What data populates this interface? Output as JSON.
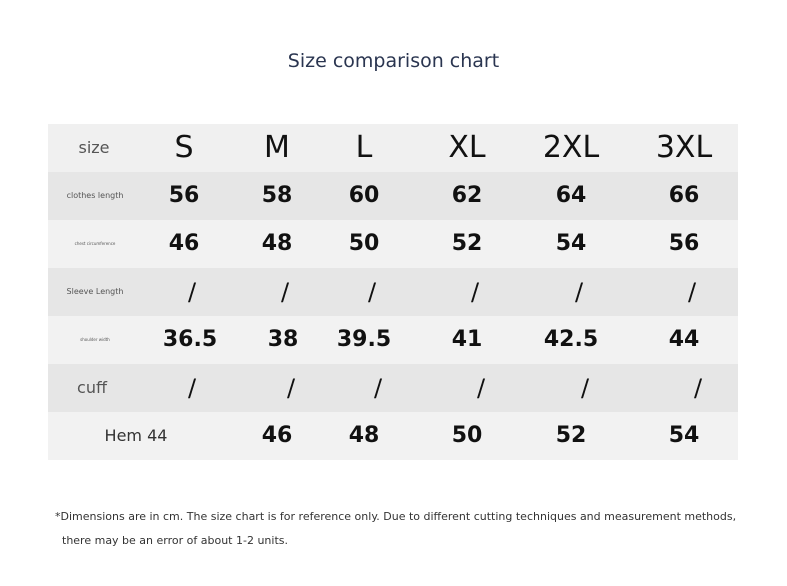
{
  "title": "Size comparison chart",
  "header": {
    "label": "size",
    "sizes": [
      "S",
      "M",
      "L",
      "XL",
      "2XL",
      "3XL"
    ]
  },
  "rows": [
    {
      "label": "clothes length",
      "values": [
        "56",
        "58",
        "60",
        "62",
        "64",
        "66"
      ]
    },
    {
      "label": "chest circumference",
      "values": [
        "46",
        "48",
        "50",
        "52",
        "54",
        "56"
      ]
    },
    {
      "label": "Sleeve Length",
      "values": [
        "/",
        "/",
        "/",
        "/",
        "/",
        "/"
      ]
    },
    {
      "label": "shoulder width",
      "values": [
        "36.5",
        "38",
        "39.5",
        "41",
        "42.5",
        "44"
      ]
    },
    {
      "label": "cuff",
      "values": [
        "/",
        "/",
        "/",
        "/",
        "/",
        "/"
      ]
    },
    {
      "label": "Hem 44",
      "values": [
        "",
        "46",
        "48",
        "50",
        "52",
        "54"
      ]
    }
  ],
  "note": {
    "line1": "*Dimensions are in cm. The size chart is for reference only. Due to different cutting techniques and measurement methods,",
    "line2": "there may be an error of about 1-2 units."
  }
}
